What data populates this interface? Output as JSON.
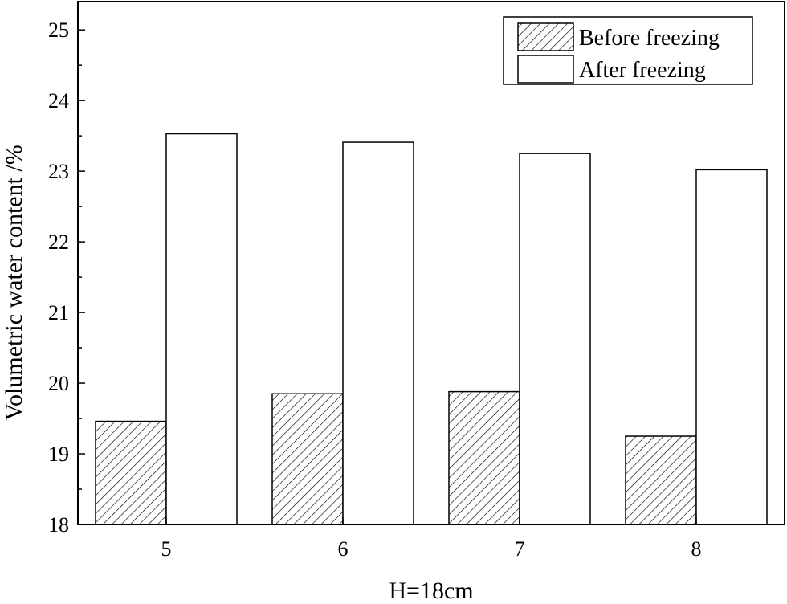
{
  "chart_data": {
    "type": "bar",
    "xlabel": "H=18cm",
    "ylabel": "Volumetric water content /%",
    "categories": [
      "5",
      "6",
      "7",
      "8"
    ],
    "ylim": [
      18,
      25.4
    ],
    "yticks": [
      18,
      19,
      20,
      21,
      22,
      23,
      24,
      25
    ],
    "yticks_minor_step": 0.5,
    "series": [
      {
        "name": "Before freezing",
        "fill": "hatched",
        "values": [
          19.46,
          19.85,
          19.88,
          19.25
        ]
      },
      {
        "name": "After freezing",
        "fill": "white",
        "values": [
          23.53,
          23.41,
          23.25,
          23.02
        ]
      }
    ],
    "legend_position": "top-right",
    "grid": false
  }
}
